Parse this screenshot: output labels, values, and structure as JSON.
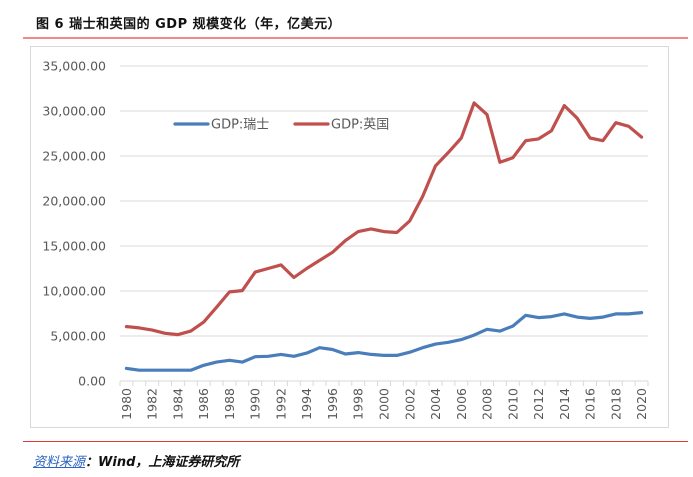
{
  "caption": "图 6  瑞士和英国的 GDP 规模变化（年，亿美元）",
  "source": {
    "label": "资料来源",
    "separator": "：",
    "body": "Wind，上海证券研究所"
  },
  "chart_data": {
    "type": "line",
    "title": "",
    "xlabel": "",
    "ylabel": "",
    "ylim": [
      0,
      35000
    ],
    "yticks": [
      0,
      5000,
      10000,
      15000,
      20000,
      25000,
      30000,
      35000
    ],
    "ytick_labels": [
      "0.00",
      "5,000.00",
      "10,000.00",
      "15,000.00",
      "20,000.00",
      "25,000.00",
      "30,000.00",
      "35,000.00"
    ],
    "grid": true,
    "legend_position": "top-left-inside",
    "x": [
      1980,
      1981,
      1982,
      1983,
      1984,
      1985,
      1986,
      1987,
      1988,
      1989,
      1990,
      1991,
      1992,
      1993,
      1994,
      1995,
      1996,
      1997,
      1998,
      1999,
      2000,
      2001,
      2002,
      2003,
      2004,
      2005,
      2006,
      2007,
      2008,
      2009,
      2010,
      2011,
      2012,
      2013,
      2014,
      2015,
      2016,
      2017,
      2018,
      2019,
      2020
    ],
    "xtick_labels": [
      "1980",
      "1982",
      "1984",
      "1986",
      "1988",
      "1990",
      "1992",
      "1994",
      "1996",
      "1998",
      "2000",
      "2002",
      "2004",
      "2006",
      "2008",
      "2010",
      "2012",
      "2014",
      "2016",
      "2018",
      "2020"
    ],
    "series": [
      {
        "name": "GDP:瑞士",
        "color": "#4a7ebb",
        "values": [
          1400,
          1200,
          1200,
          1200,
          1200,
          1200,
          1750,
          2100,
          2300,
          2100,
          2700,
          2750,
          2950,
          2750,
          3100,
          3700,
          3500,
          3000,
          3150,
          2950,
          2850,
          2850,
          3200,
          3700,
          4100,
          4300,
          4600,
          5100,
          5750,
          5550,
          6100,
          7300,
          7050,
          7150,
          7450,
          7100,
          6950,
          7100,
          7450,
          7450,
          7600
        ]
      },
      {
        "name": "GDP:英国",
        "color": "#c0504d",
        "values": [
          6050,
          5900,
          5650,
          5300,
          5150,
          5550,
          6550,
          8200,
          9900,
          10050,
          12100,
          12500,
          12900,
          11500,
          12500,
          13400,
          14300,
          15600,
          16600,
          16900,
          16600,
          16500,
          17800,
          20500,
          23900,
          25400,
          27000,
          30900,
          29600,
          24300,
          24800,
          26700,
          26900,
          27800,
          30600,
          29200,
          27000,
          26700,
          28700,
          28300,
          27100
        ]
      }
    ]
  }
}
